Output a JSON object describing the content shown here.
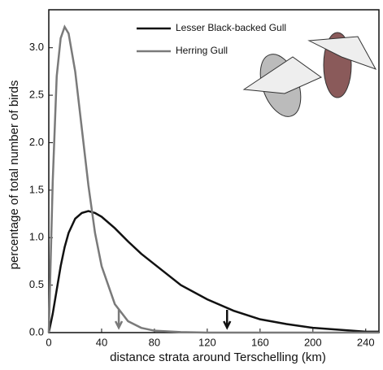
{
  "chart_data": {
    "type": "line",
    "x_label": "distance strata around Terschelling (km)",
    "y_label": "percentage of total number of birds",
    "x": [
      0,
      3,
      6,
      9,
      12,
      15,
      20,
      25,
      30,
      35,
      40,
      50,
      60,
      70,
      80,
      100,
      120,
      140,
      160,
      180,
      200,
      220,
      240,
      250
    ],
    "series": [
      {
        "name": "Lesser Black-backed Gull",
        "color": "#111111",
        "values": [
          0,
          0.2,
          0.45,
          0.7,
          0.9,
          1.05,
          1.2,
          1.26,
          1.28,
          1.26,
          1.22,
          1.1,
          0.96,
          0.83,
          0.72,
          0.5,
          0.35,
          0.23,
          0.14,
          0.09,
          0.05,
          0.03,
          0.01,
          0.01
        ]
      },
      {
        "name": "Herring Gull",
        "color": "#7a7a7a",
        "values": [
          0,
          1.6,
          2.7,
          3.1,
          3.22,
          3.15,
          2.75,
          2.15,
          1.55,
          1.05,
          0.7,
          0.3,
          0.12,
          0.05,
          0.02,
          0.005,
          0,
          0,
          0,
          0,
          0,
          0,
          0,
          0
        ]
      }
    ],
    "markers": [
      {
        "x": 53,
        "color": "#7a7a7a"
      },
      {
        "x": 135,
        "color": "#111111"
      }
    ],
    "xlim": [
      0,
      250
    ],
    "ylim": [
      0,
      3.4
    ],
    "xticks": [
      0,
      40,
      80,
      120,
      160,
      200,
      240
    ],
    "yticks": [
      {
        "value": 0,
        "label": "0.0"
      },
      0.5,
      {
        "value": 1,
        "label": "1.0"
      },
      1.5,
      {
        "value": 2,
        "label": "2.0"
      },
      2.5,
      {
        "value": 3,
        "label": "3.0"
      }
    ]
  }
}
